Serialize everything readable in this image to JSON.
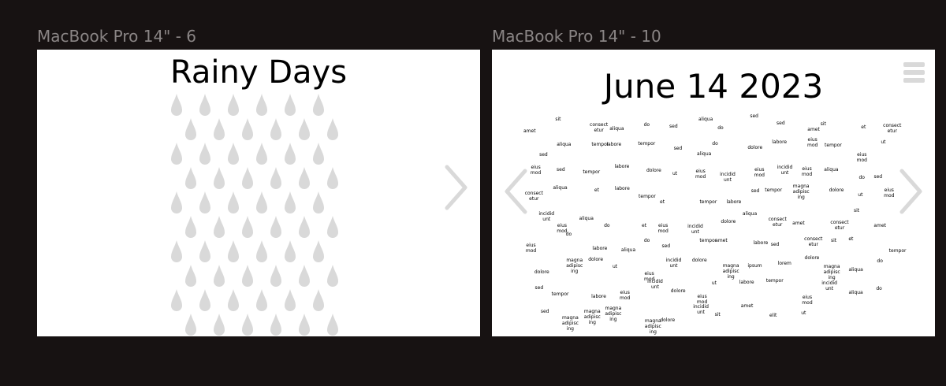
{
  "frames": [
    {
      "label": "MacBook Pro 14\" - 6",
      "title": "Rainy Days"
    },
    {
      "label": "MacBook Pro 14\" - 10",
      "title": "June 14 2023"
    }
  ],
  "icons": {
    "drop": "raindrop-icon",
    "next": "chevron-right-icon",
    "prev": "chevron-left-icon",
    "menu": "hamburger-menu-icon"
  },
  "colors": {
    "canvas": "#171212",
    "frame_bg": "#ffffff",
    "frame_label": "#8a8585",
    "drop": "#d9d9d9",
    "chevron": "#d9d9d9"
  },
  "word_cloud": [
    "amet",
    "sit",
    "consect etur",
    "aliqua",
    "do",
    "sed",
    "aliqua",
    "do",
    "sed",
    "sed",
    "amet",
    "sit",
    "et",
    "consect etur",
    "sed",
    "aliqua",
    "tempor",
    "labore",
    "tempor",
    "sed",
    "aliqua",
    "do",
    "dolore",
    "labore",
    "eius mod",
    "tempor",
    "eius mod",
    "ut",
    "eius mod",
    "sed",
    "tempor",
    "labore",
    "dolore",
    "ut",
    "eius mod",
    "incidid unt",
    "eius mod",
    "incidid unt",
    "eius mod",
    "aliqua",
    "do",
    "sed",
    "consect etur",
    "aliqua",
    "et",
    "labore",
    "tempor",
    "et",
    "tempor",
    "labore",
    "sed",
    "tempor",
    "magna adipisc ing",
    "dolore",
    "ut",
    "eius mod",
    "incidid unt",
    "eius mod",
    "aliqua",
    "do",
    "et",
    "eius mod",
    "incidid unt",
    "dolore",
    "aliqua",
    "consect etur",
    "amet",
    "consect etur",
    "sit",
    "amet",
    "eius mod",
    "do",
    "labore",
    "aliqua",
    "do",
    "sed",
    "tempor",
    "amet",
    "labore",
    "sed",
    "consect etur",
    "sit",
    "et",
    "tempor",
    "dolore",
    "magna adipisc ing",
    "dolore",
    "ut",
    "eius mod",
    "incidid unt",
    "dolore",
    "magna adipisc ing",
    "ipsum",
    "lorem",
    "dolore",
    "magna adipisc ing",
    "aliqua",
    "do",
    "sed",
    "tempor",
    "labore",
    "eius mod",
    "incidid unt",
    "dolore",
    "eius mod",
    "ut",
    "labore",
    "tempor",
    "eius mod",
    "incidid unt",
    "aliqua",
    "do",
    "sed",
    "magna adipisc ing",
    "magna adipisc ing",
    "magna adipisc ing",
    "magna adipisc ing",
    "dolore",
    "incidid unt",
    "sit",
    "amet",
    "elit",
    "ut"
  ]
}
